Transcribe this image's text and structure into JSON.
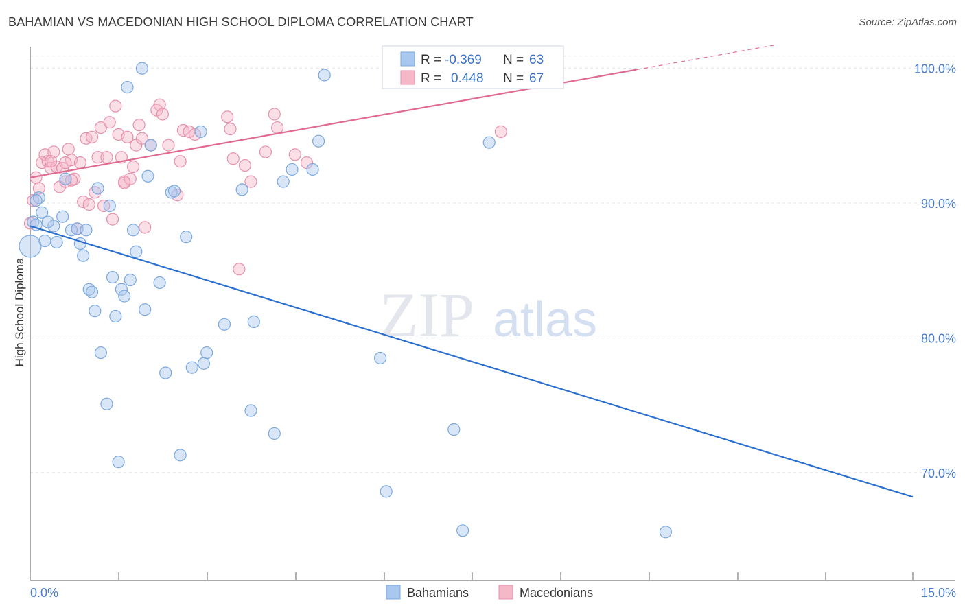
{
  "header": {
    "title": "BAHAMIAN VS MACEDONIAN HIGH SCHOOL DIPLOMA CORRELATION CHART",
    "source": "Source: ZipAtlas.com"
  },
  "watermark": {
    "zip": "ZIP",
    "atlas": "atlas"
  },
  "legend": {
    "rows": [
      {
        "r_label": "R =",
        "r_value": "-0.369",
        "n_label": "N =",
        "n_value": "63"
      },
      {
        "r_label": "R =",
        "r_value": "0.448",
        "n_label": "N =",
        "n_value": "67"
      }
    ]
  },
  "bottom_legend": {
    "items": [
      "Bahamians",
      "Macedonians"
    ]
  },
  "colors": {
    "blue_fill": "#a8c8f0",
    "blue_stroke": "#7aa8e0",
    "blue_line": "#2a6fce",
    "pink_fill": "#f5b8c9",
    "pink_stroke": "#e890aa",
    "pink_line": "#e06a90",
    "value_text": "#3a72c8",
    "grid": "#e0e0e8"
  },
  "chart_data": {
    "type": "scatter",
    "title": "BAHAMIAN VS MACEDONIAN HIGH SCHOOL DIPLOMA CORRELATION CHART",
    "xlabel": "",
    "ylabel": "High School Diploma",
    "xlim": [
      0,
      15
    ],
    "ylim": [
      62,
      101
    ],
    "x_tick_labels": [
      "0.0%",
      "15.0%"
    ],
    "y_ticks": [
      70,
      80,
      90,
      100
    ],
    "y_tick_labels": [
      "70.0%",
      "80.0%",
      "90.0%",
      "100.0%"
    ],
    "grid": true,
    "legend_position": "top-center",
    "series": [
      {
        "name": "Bahamians",
        "r": -0.369,
        "n": 63,
        "trend": {
          "x": [
            0.0,
            15.0
          ],
          "y": [
            88.3,
            68.2
          ]
        },
        "points": [
          [
            0.0,
            86.8
          ],
          [
            0.05,
            88.6
          ],
          [
            0.1,
            88.4
          ],
          [
            0.15,
            90.4
          ],
          [
            0.2,
            89.3
          ],
          [
            0.25,
            87.2
          ],
          [
            0.4,
            88.3
          ],
          [
            0.45,
            87.1
          ],
          [
            0.55,
            89.0
          ],
          [
            0.6,
            91.8
          ],
          [
            0.7,
            88.0
          ],
          [
            0.8,
            88.1
          ],
          [
            0.85,
            87.0
          ],
          [
            0.9,
            86.1
          ],
          [
            0.95,
            88.0
          ],
          [
            1.0,
            83.6
          ],
          [
            1.05,
            83.4
          ],
          [
            1.1,
            82.0
          ],
          [
            1.15,
            91.1
          ],
          [
            1.2,
            78.9
          ],
          [
            1.3,
            75.1
          ],
          [
            1.35,
            89.8
          ],
          [
            1.4,
            84.5
          ],
          [
            1.45,
            81.6
          ],
          [
            1.5,
            70.8
          ],
          [
            1.55,
            83.6
          ],
          [
            1.6,
            83.1
          ],
          [
            1.65,
            98.6
          ],
          [
            1.7,
            84.3
          ],
          [
            1.75,
            88.0
          ],
          [
            1.8,
            86.4
          ],
          [
            1.9,
            100.0
          ],
          [
            1.95,
            82.1
          ],
          [
            2.0,
            92.0
          ],
          [
            2.05,
            94.3
          ],
          [
            2.2,
            84.1
          ],
          [
            2.3,
            77.4
          ],
          [
            2.4,
            90.8
          ],
          [
            2.45,
            90.9
          ],
          [
            2.55,
            71.3
          ],
          [
            2.65,
            87.5
          ],
          [
            2.75,
            77.8
          ],
          [
            2.9,
            95.3
          ],
          [
            2.95,
            78.1
          ],
          [
            3.0,
            78.9
          ],
          [
            3.3,
            81.0
          ],
          [
            3.6,
            91.0
          ],
          [
            3.75,
            74.6
          ],
          [
            3.8,
            81.2
          ],
          [
            4.15,
            72.9
          ],
          [
            4.3,
            91.6
          ],
          [
            4.45,
            92.5
          ],
          [
            4.8,
            92.5
          ],
          [
            4.9,
            94.6
          ],
          [
            5.0,
            99.5
          ],
          [
            5.95,
            78.5
          ],
          [
            6.05,
            68.6
          ],
          [
            7.2,
            73.2
          ],
          [
            7.35,
            65.7
          ],
          [
            7.8,
            94.5
          ],
          [
            10.8,
            65.6
          ],
          [
            0.1,
            90.2
          ],
          [
            0.3,
            88.6
          ]
        ]
      },
      {
        "name": "Macedonians",
        "r": 0.448,
        "n": 67,
        "trend": {
          "x": [
            0.0,
            10.3
          ],
          "y": [
            91.9,
            99.9
          ]
        },
        "points": [
          [
            0.0,
            88.5
          ],
          [
            0.05,
            90.2
          ],
          [
            0.1,
            91.9
          ],
          [
            0.15,
            91.1
          ],
          [
            0.2,
            93.0
          ],
          [
            0.25,
            93.6
          ],
          [
            0.3,
            93.1
          ],
          [
            0.35,
            92.6
          ],
          [
            0.4,
            93.8
          ],
          [
            0.45,
            92.7
          ],
          [
            0.5,
            91.2
          ],
          [
            0.55,
            92.6
          ],
          [
            0.6,
            91.6
          ],
          [
            0.65,
            94.0
          ],
          [
            0.7,
            93.2
          ],
          [
            0.75,
            91.8
          ],
          [
            0.8,
            88.1
          ],
          [
            0.85,
            93.0
          ],
          [
            0.9,
            90.1
          ],
          [
            0.95,
            94.8
          ],
          [
            1.0,
            89.9
          ],
          [
            1.05,
            94.9
          ],
          [
            1.1,
            90.8
          ],
          [
            1.15,
            93.4
          ],
          [
            1.2,
            95.6
          ],
          [
            1.25,
            89.8
          ],
          [
            1.3,
            93.4
          ],
          [
            1.35,
            96.0
          ],
          [
            1.4,
            88.8
          ],
          [
            1.45,
            97.2
          ],
          [
            1.5,
            95.1
          ],
          [
            1.55,
            93.4
          ],
          [
            1.6,
            91.5
          ],
          [
            1.65,
            94.9
          ],
          [
            1.7,
            91.8
          ],
          [
            1.75,
            92.7
          ],
          [
            1.8,
            94.3
          ],
          [
            1.85,
            95.8
          ],
          [
            1.9,
            94.8
          ],
          [
            1.95,
            88.2
          ],
          [
            2.05,
            94.3
          ],
          [
            2.15,
            96.9
          ],
          [
            2.2,
            97.3
          ],
          [
            2.25,
            96.6
          ],
          [
            2.5,
            90.6
          ],
          [
            2.55,
            93.1
          ],
          [
            2.6,
            95.4
          ],
          [
            2.7,
            95.3
          ],
          [
            2.8,
            95.1
          ],
          [
            3.35,
            96.4
          ],
          [
            3.4,
            95.5
          ],
          [
            3.45,
            93.3
          ],
          [
            3.55,
            85.1
          ],
          [
            3.65,
            92.8
          ],
          [
            3.75,
            91.6
          ],
          [
            4.0,
            93.8
          ],
          [
            4.15,
            96.6
          ],
          [
            4.2,
            95.6
          ],
          [
            4.5,
            93.6
          ],
          [
            4.7,
            93.0
          ],
          [
            8.0,
            95.3
          ],
          [
            8.4,
            99.9
          ],
          [
            0.35,
            93.1
          ],
          [
            0.7,
            91.7
          ],
          [
            1.6,
            91.6
          ],
          [
            2.35,
            94.3
          ],
          [
            0.6,
            93.0
          ]
        ]
      }
    ]
  }
}
